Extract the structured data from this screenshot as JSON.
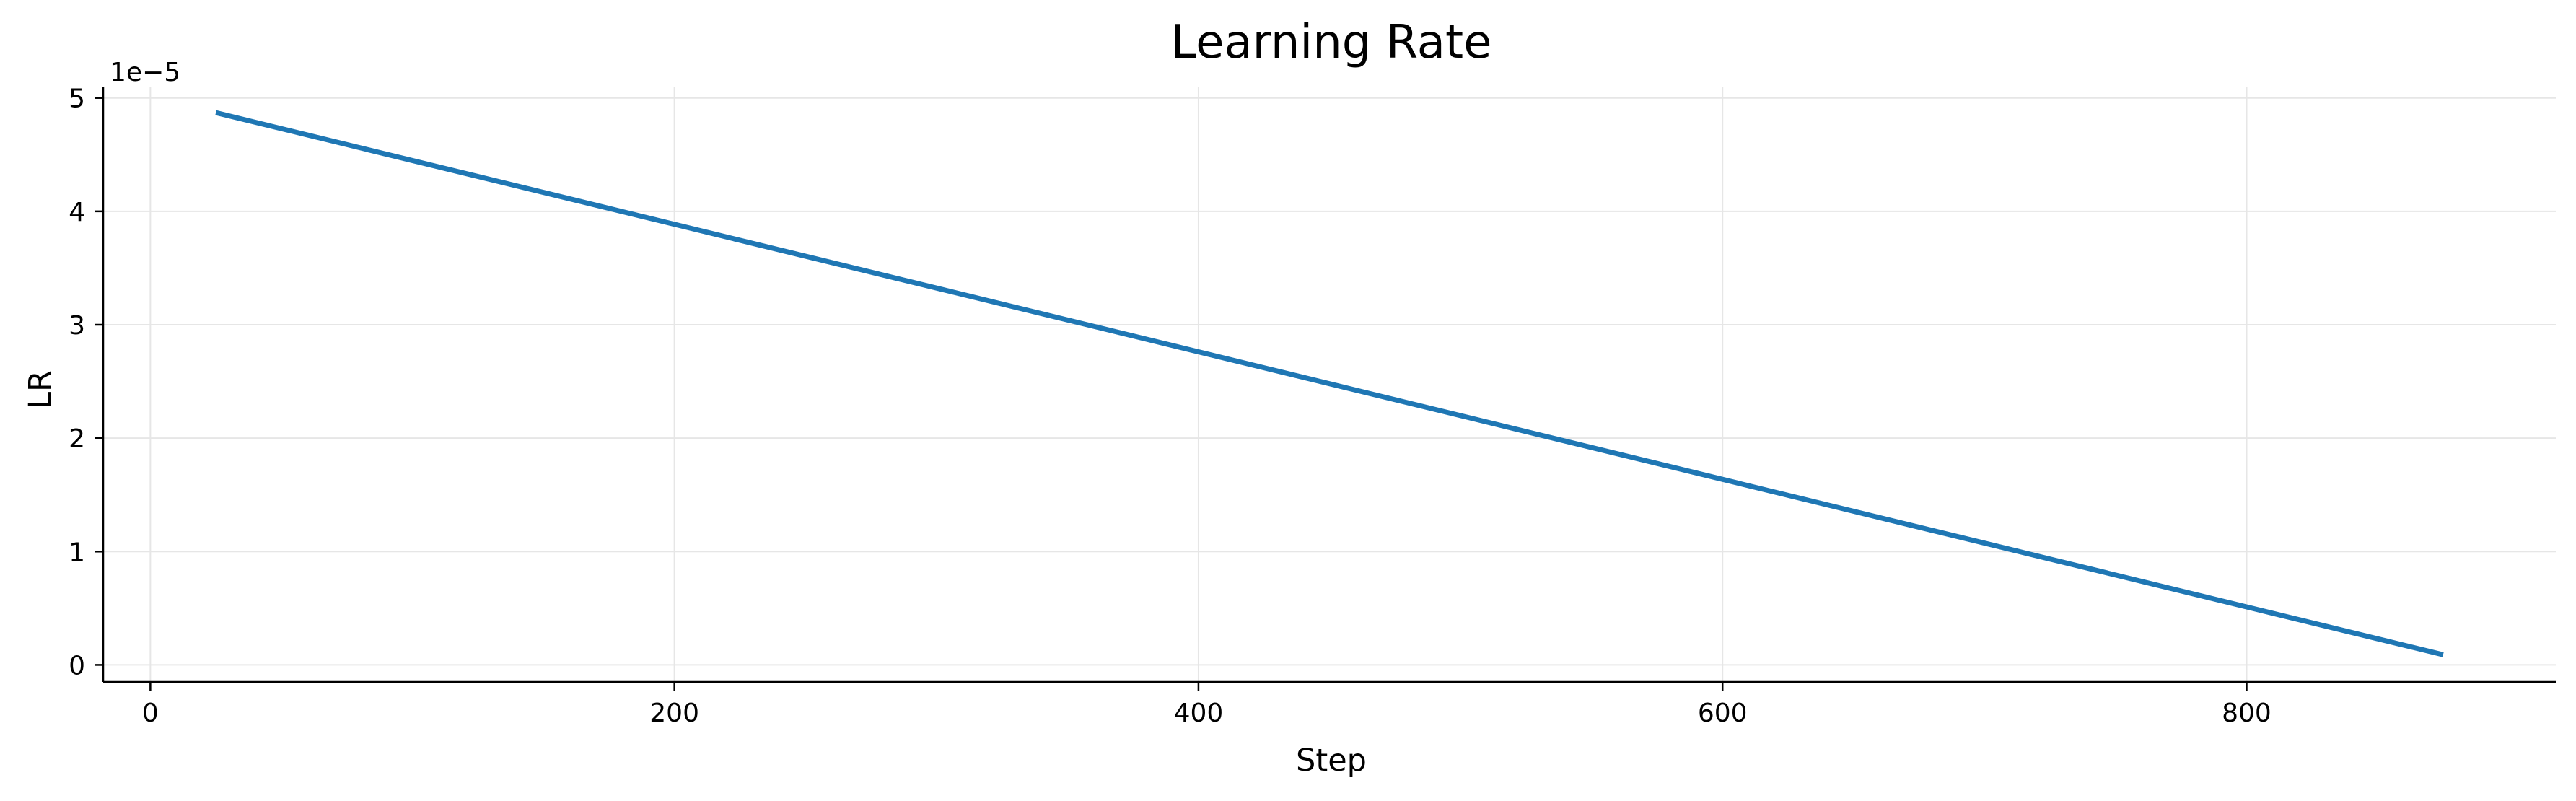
{
  "chart_data": {
    "type": "line",
    "title": "Learning Rate",
    "xlabel": "Step",
    "ylabel": "LR",
    "y_scale_label": "1e−5",
    "x_ticks": [
      0,
      200,
      400,
      600,
      800
    ],
    "y_ticks": [
      0,
      1,
      2,
      3,
      4,
      5
    ],
    "xlim": [
      -18,
      918
    ],
    "ylim": [
      -0.15,
      5.1
    ],
    "grid": true,
    "series": [
      {
        "color": "#1f77b4",
        "x": [
          25,
          875
        ],
        "y": [
          4.87,
          0.09
        ]
      }
    ]
  }
}
